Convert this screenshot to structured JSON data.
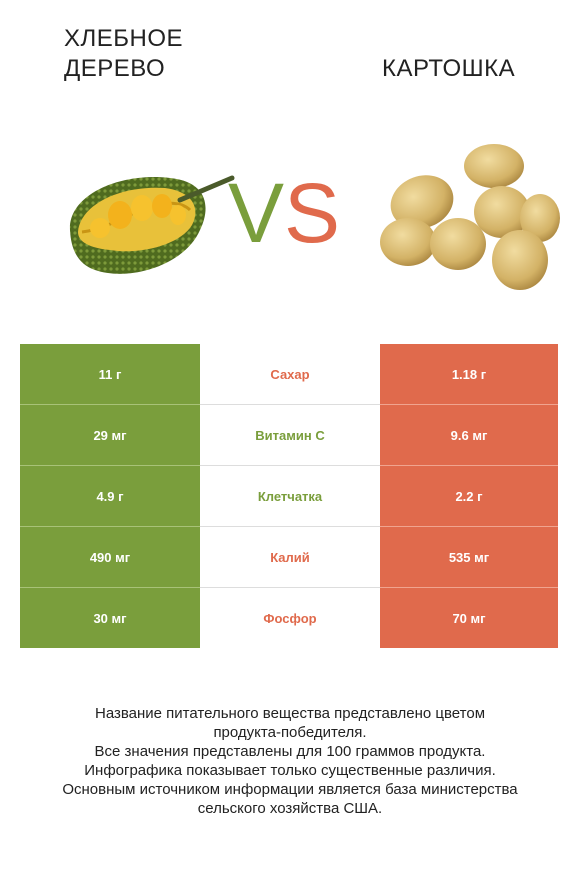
{
  "header": {
    "left_title_line1": "ХЛЕБНОЕ",
    "left_title_line2": "ДЕРЕВО",
    "right_title": "КАРТОШКА",
    "vs_v": "V",
    "vs_s": "S"
  },
  "colors": {
    "left_accent": "#7a9e3c",
    "right_accent": "#e06a4c"
  },
  "rows": [
    {
      "left": "11 г",
      "name": "Сахар",
      "right": "1.18 г",
      "winner": "right"
    },
    {
      "left": "29 мг",
      "name": "Витамин C",
      "right": "9.6 мг",
      "winner": "left"
    },
    {
      "left": "4.9 г",
      "name": "Клетчатка",
      "right": "2.2 г",
      "winner": "left"
    },
    {
      "left": "490 мг",
      "name": "Калий",
      "right": "535 мг",
      "winner": "right"
    },
    {
      "left": "30 мг",
      "name": "Фосфор",
      "right": "70 мг",
      "winner": "right"
    }
  ],
  "footer": {
    "line1": "Название питательного вещества представлено цветом",
    "line2": "продукта-победителя.",
    "line3": "Все значения представлены для 100 граммов продукта.",
    "line4": "Инфографика показывает только существенные различия.",
    "line5": "Основным источником информации является база министерства",
    "line6": "сельского хозяйства США."
  },
  "images": {
    "left_icon": "jackfruit-image",
    "right_icon": "potatoes-image"
  }
}
